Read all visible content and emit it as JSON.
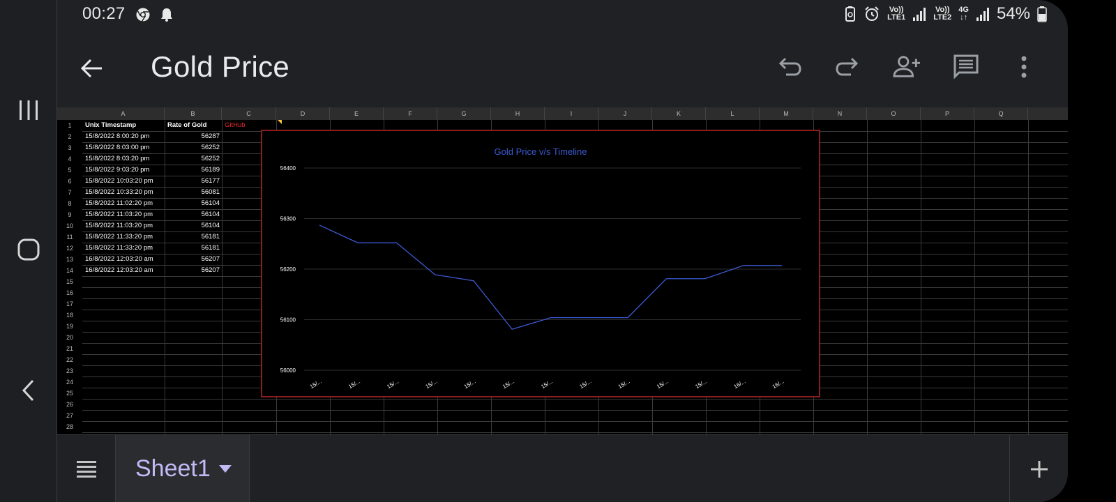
{
  "status_bar": {
    "time": "00:27",
    "battery": "54%",
    "sim1_top": "Vo))",
    "sim1_bottom": "LTE1",
    "sim2_top": "Vo))",
    "sim2_bottom": "LTE2",
    "network": "4G"
  },
  "toolbar": {
    "title": "Gold Price",
    "icons": [
      "back-arrow-icon",
      "undo-icon",
      "redo-icon",
      "add-person-icon",
      "comment-icon",
      "more-vert-icon"
    ]
  },
  "sheet": {
    "columns": [
      "A",
      "B",
      "C",
      "D",
      "E",
      "F",
      "G",
      "H",
      "I",
      "J",
      "K",
      "L",
      "M",
      "N",
      "O",
      "P",
      "Q"
    ],
    "row_numbers": [
      "1",
      "2",
      "3",
      "4",
      "5",
      "6",
      "7",
      "8",
      "9",
      "10",
      "11",
      "12",
      "13",
      "14",
      "15",
      "16",
      "17",
      "18",
      "19",
      "20",
      "21",
      "22",
      "23",
      "24",
      "25",
      "26",
      "27",
      "28"
    ],
    "header": {
      "a1": "Unix Timestamp",
      "b1": "Rate of Gold",
      "c1": "GitHub"
    },
    "rows": [
      [
        "15/8/2022 8:00:20 pm",
        "56287"
      ],
      [
        "15/8/2022 8:03:00 pm",
        "56252"
      ],
      [
        "15/8/2022 8:03:20 pm",
        "56252"
      ],
      [
        "15/8/2022 9:03:20 pm",
        "56189"
      ],
      [
        "15/8/2022 10:03:20 pm",
        "56177"
      ],
      [
        "15/8/2022 10:33:20 pm",
        "56081"
      ],
      [
        "15/8/2022 11:02:20 pm",
        "56104"
      ],
      [
        "15/8/2022 11:03:20 pm",
        "56104"
      ],
      [
        "15/8/2022 11:03:20 pm",
        "56104"
      ],
      [
        "15/8/2022 11:33:20 pm",
        "56181"
      ],
      [
        "15/8/2022 11:33:20 pm",
        "56181"
      ],
      [
        "16/8/2022 12:03:20 am",
        "56207"
      ],
      [
        "16/8/2022 12:03:20 am",
        "56207"
      ]
    ]
  },
  "chart_data": {
    "type": "line",
    "title": "Gold Price v/s Timeline",
    "xlabel": "",
    "ylabel": "",
    "categories": [
      "15/...",
      "15/...",
      "15/...",
      "15/...",
      "15/...",
      "15/...",
      "15/...",
      "15/...",
      "15/...",
      "15/...",
      "15/...",
      "16/...",
      "16/..."
    ],
    "values": [
      56287,
      56252,
      56252,
      56189,
      56177,
      56081,
      56104,
      56104,
      56104,
      56181,
      56181,
      56207,
      56207
    ],
    "ylim": [
      56000,
      56400
    ],
    "yticks": [
      "56000",
      "56100",
      "56200",
      "56300",
      "56400"
    ],
    "grid": true,
    "legend": "none",
    "line_color": "#3d5bd4",
    "title_color": "#3d5bd4",
    "border_color": "#8b1d1d"
  },
  "tab_bar": {
    "sheet_name": "Sheet1",
    "icons": [
      "all-sheets-icon",
      "add-sheet-icon"
    ]
  },
  "colors": {
    "app_bg": "#202124",
    "accent": "#c3b9f5",
    "link": "#e32b2b"
  }
}
